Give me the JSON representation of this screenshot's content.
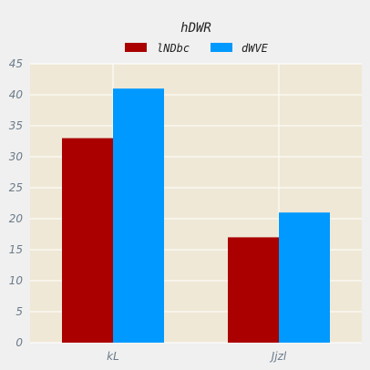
{
  "chart_data": {
    "type": "bar",
    "title": "hDWR",
    "categories": [
      "kL",
      "Jjzl"
    ],
    "series": [
      {
        "name": "lNDbc",
        "values": [
          33,
          17
        ],
        "color": "#aa0000"
      },
      {
        "name": "dWVE",
        "values": [
          41,
          21
        ],
        "color": "#0099ff"
      }
    ],
    "xlabel": "",
    "ylabel": "",
    "ylim": [
      0,
      45
    ],
    "yticks": [
      0,
      5,
      10,
      15,
      20,
      25,
      30,
      35,
      40,
      45
    ],
    "grid": true,
    "legend_position": "top-center",
    "plot_background": "#efe8d6",
    "grid_color": "#ffffff"
  }
}
